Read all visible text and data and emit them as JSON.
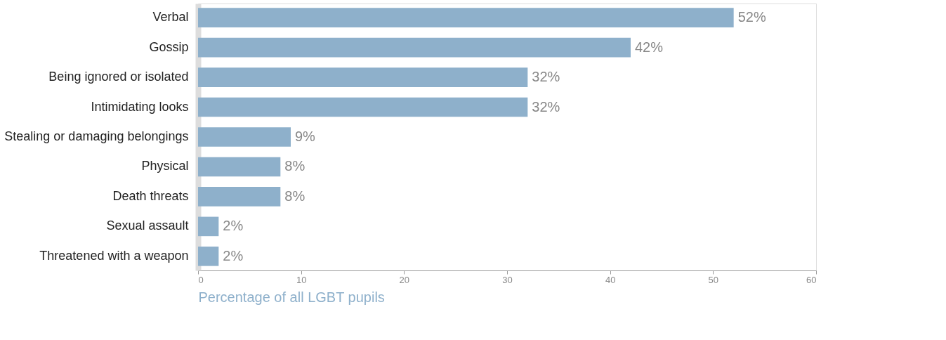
{
  "chart_data": {
    "type": "bar",
    "orientation": "horizontal",
    "xlabel": "Percentage of all LGBT pupils",
    "categories": [
      "Verbal",
      "Gossip",
      "Being ignored or isolated",
      "Intimidating looks",
      "Stealing or damaging belongings",
      "Physical",
      "Death threats",
      "Sexual assault",
      "Threatened with a weapon"
    ],
    "values": [
      52,
      42,
      32,
      32,
      9,
      8,
      8,
      2,
      2
    ],
    "value_labels": [
      "52%",
      "42%",
      "32%",
      "32%",
      "9%",
      "8%",
      "8%",
      "2%",
      "2%"
    ],
    "color": "#8eb0cb",
    "xlim": [
      0,
      60
    ],
    "xticks": [
      0,
      10,
      20,
      30,
      40,
      50,
      60
    ],
    "grid": false
  }
}
